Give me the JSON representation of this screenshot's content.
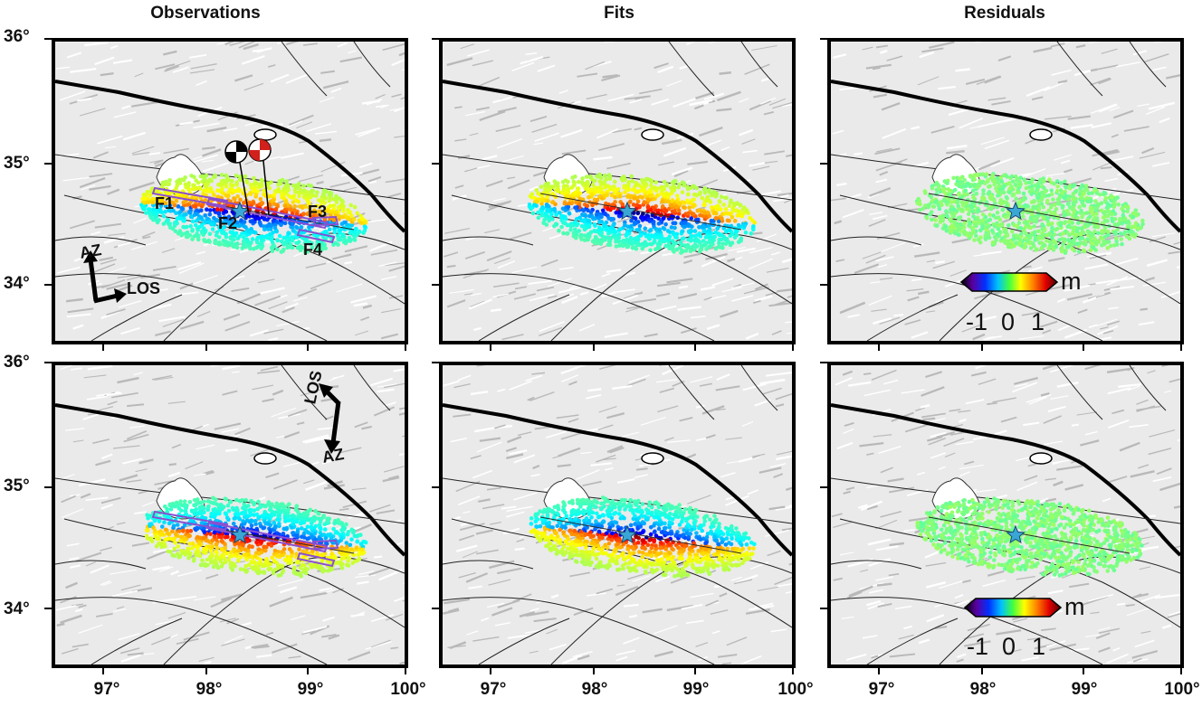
{
  "columns": [
    "Observations",
    "Fits",
    "Residuals"
  ],
  "lat_labels": [
    "36°",
    "35°",
    "34°"
  ],
  "lon_labels": [
    "97°",
    "98°",
    "99°",
    "100°"
  ],
  "fault_labels": [
    "F1",
    "F2",
    "F3",
    "F4"
  ],
  "arrows_top": {
    "az": "AZ",
    "los": "LOS"
  },
  "arrows_bottom": {
    "az": "AZ",
    "los": "LOS"
  },
  "colorbar": {
    "unit": "m",
    "ticks": [
      "-1",
      "0",
      "1"
    ]
  },
  "colors": {
    "epicenter_star": "#3aa6d6",
    "fault_box": "#8a4fd0",
    "beachball": "#d0211c"
  }
}
